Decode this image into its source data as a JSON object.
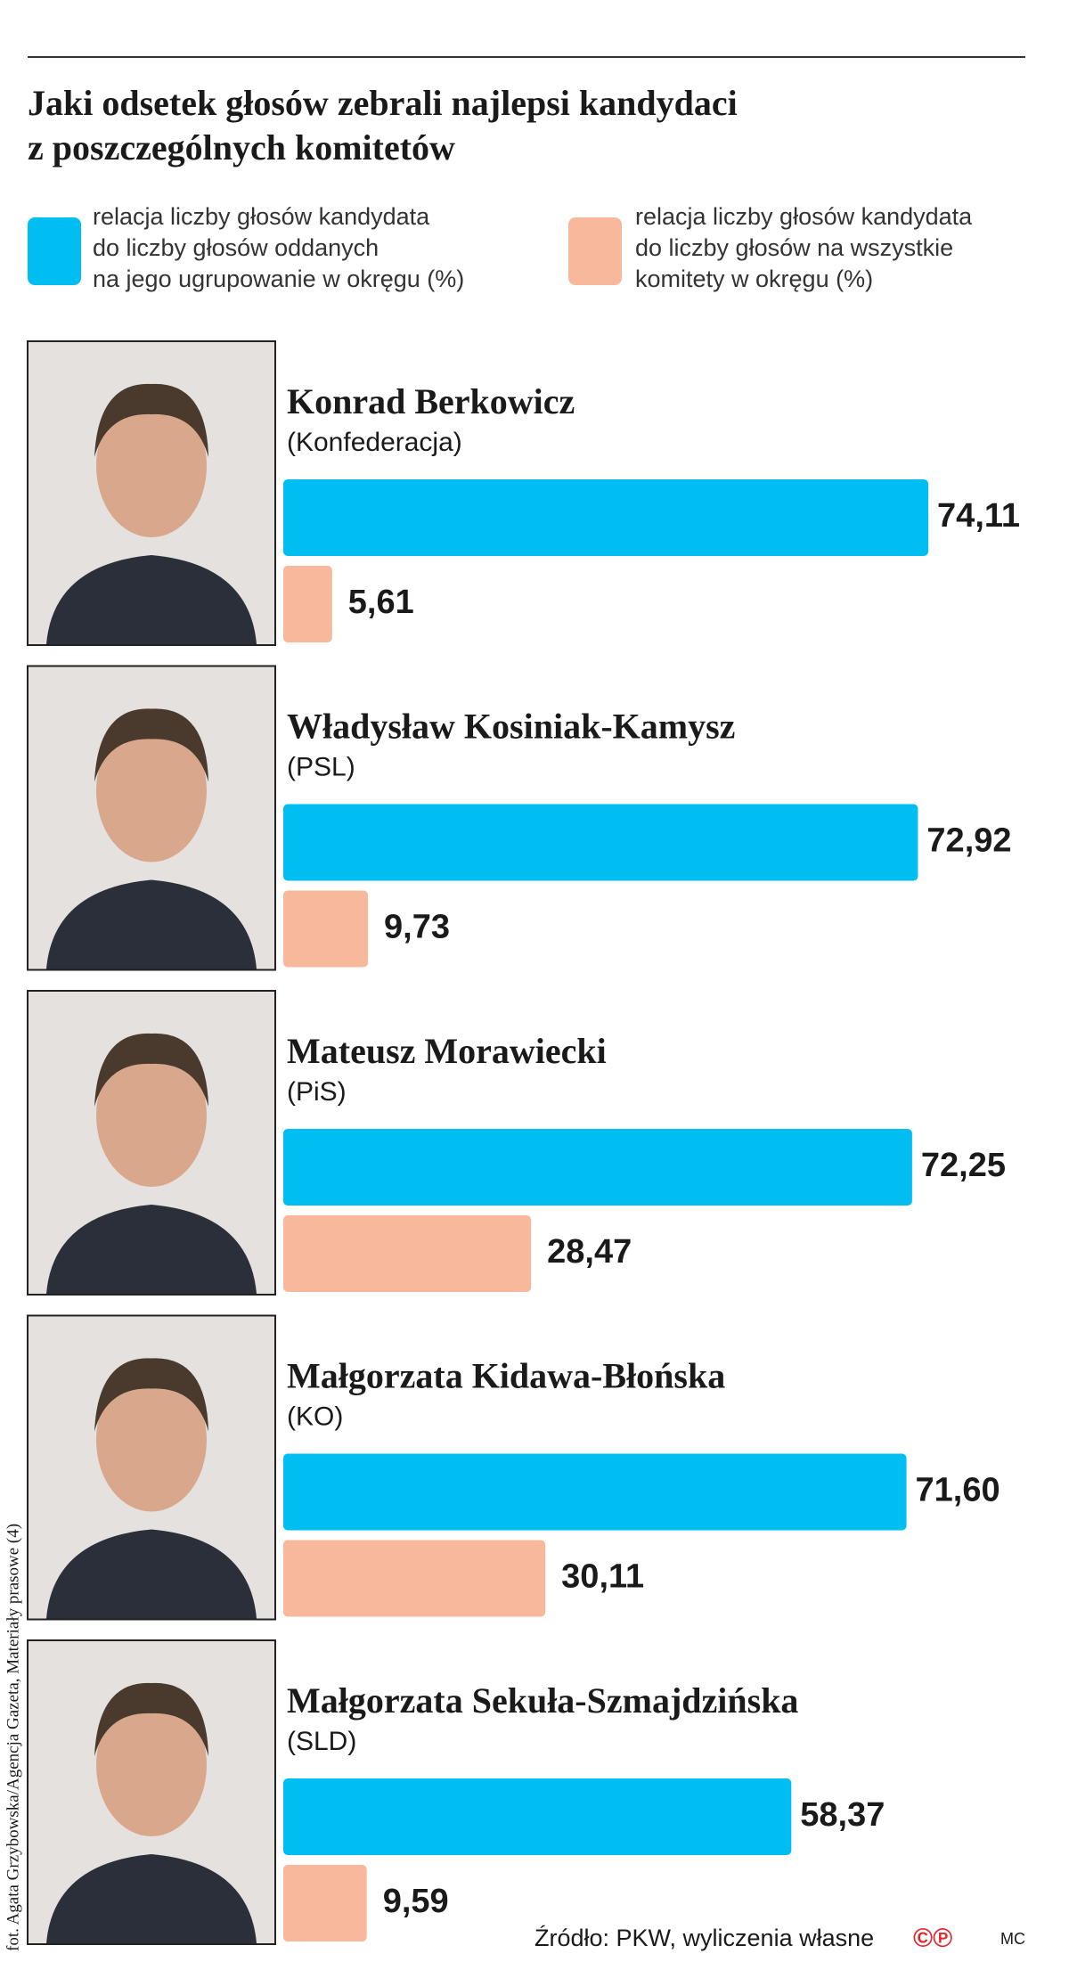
{
  "chart_data": {
    "type": "bar",
    "title_lines": [
      "Jaki odsetek głosów zebrali najlepsi kandydaci",
      "z poszczególnych komitetów"
    ],
    "categories": [
      "Konrad Berkowicz",
      "Władysław Kosiniak-Kamysz",
      "Mateusz Morawiecki",
      "Małgorzata Kidawa-Błońska",
      "Małgorzata Sekuła-Szmajdzińska"
    ],
    "parties": [
      "(Konfederacja)",
      "(PSL)",
      "(PiS)",
      "(KO)",
      "(SLD)"
    ],
    "series": [
      {
        "name": "relacja liczby głosów kandydata\ndo liczby głosów oddanych\nna jego ugrupowanie w okręgu (%)",
        "color": "#00bdf2",
        "values": [
          74.11,
          72.92,
          72.25,
          71.6,
          58.37
        ],
        "value_labels": [
          "74,11",
          "72,92",
          "72,25",
          "71,60",
          "58,37"
        ]
      },
      {
        "name": "relacja liczby głosów kandydata\ndo liczby głosów na wszystkie\nkomitety w okręgu (%)",
        "color": "#f7b89c",
        "values": [
          5.61,
          9.73,
          28.47,
          30.11,
          9.59
        ],
        "value_labels": [
          "5,61",
          "9,73",
          "28,47",
          "30,11",
          "9,59"
        ]
      }
    ],
    "source": "Źródło: PKW, wyliczenia własne",
    "logo": "©℗",
    "author": "MC",
    "credit": "fot. Agata Grzybowska/Agencja Gazeta, Materiały prasowe (4)"
  }
}
